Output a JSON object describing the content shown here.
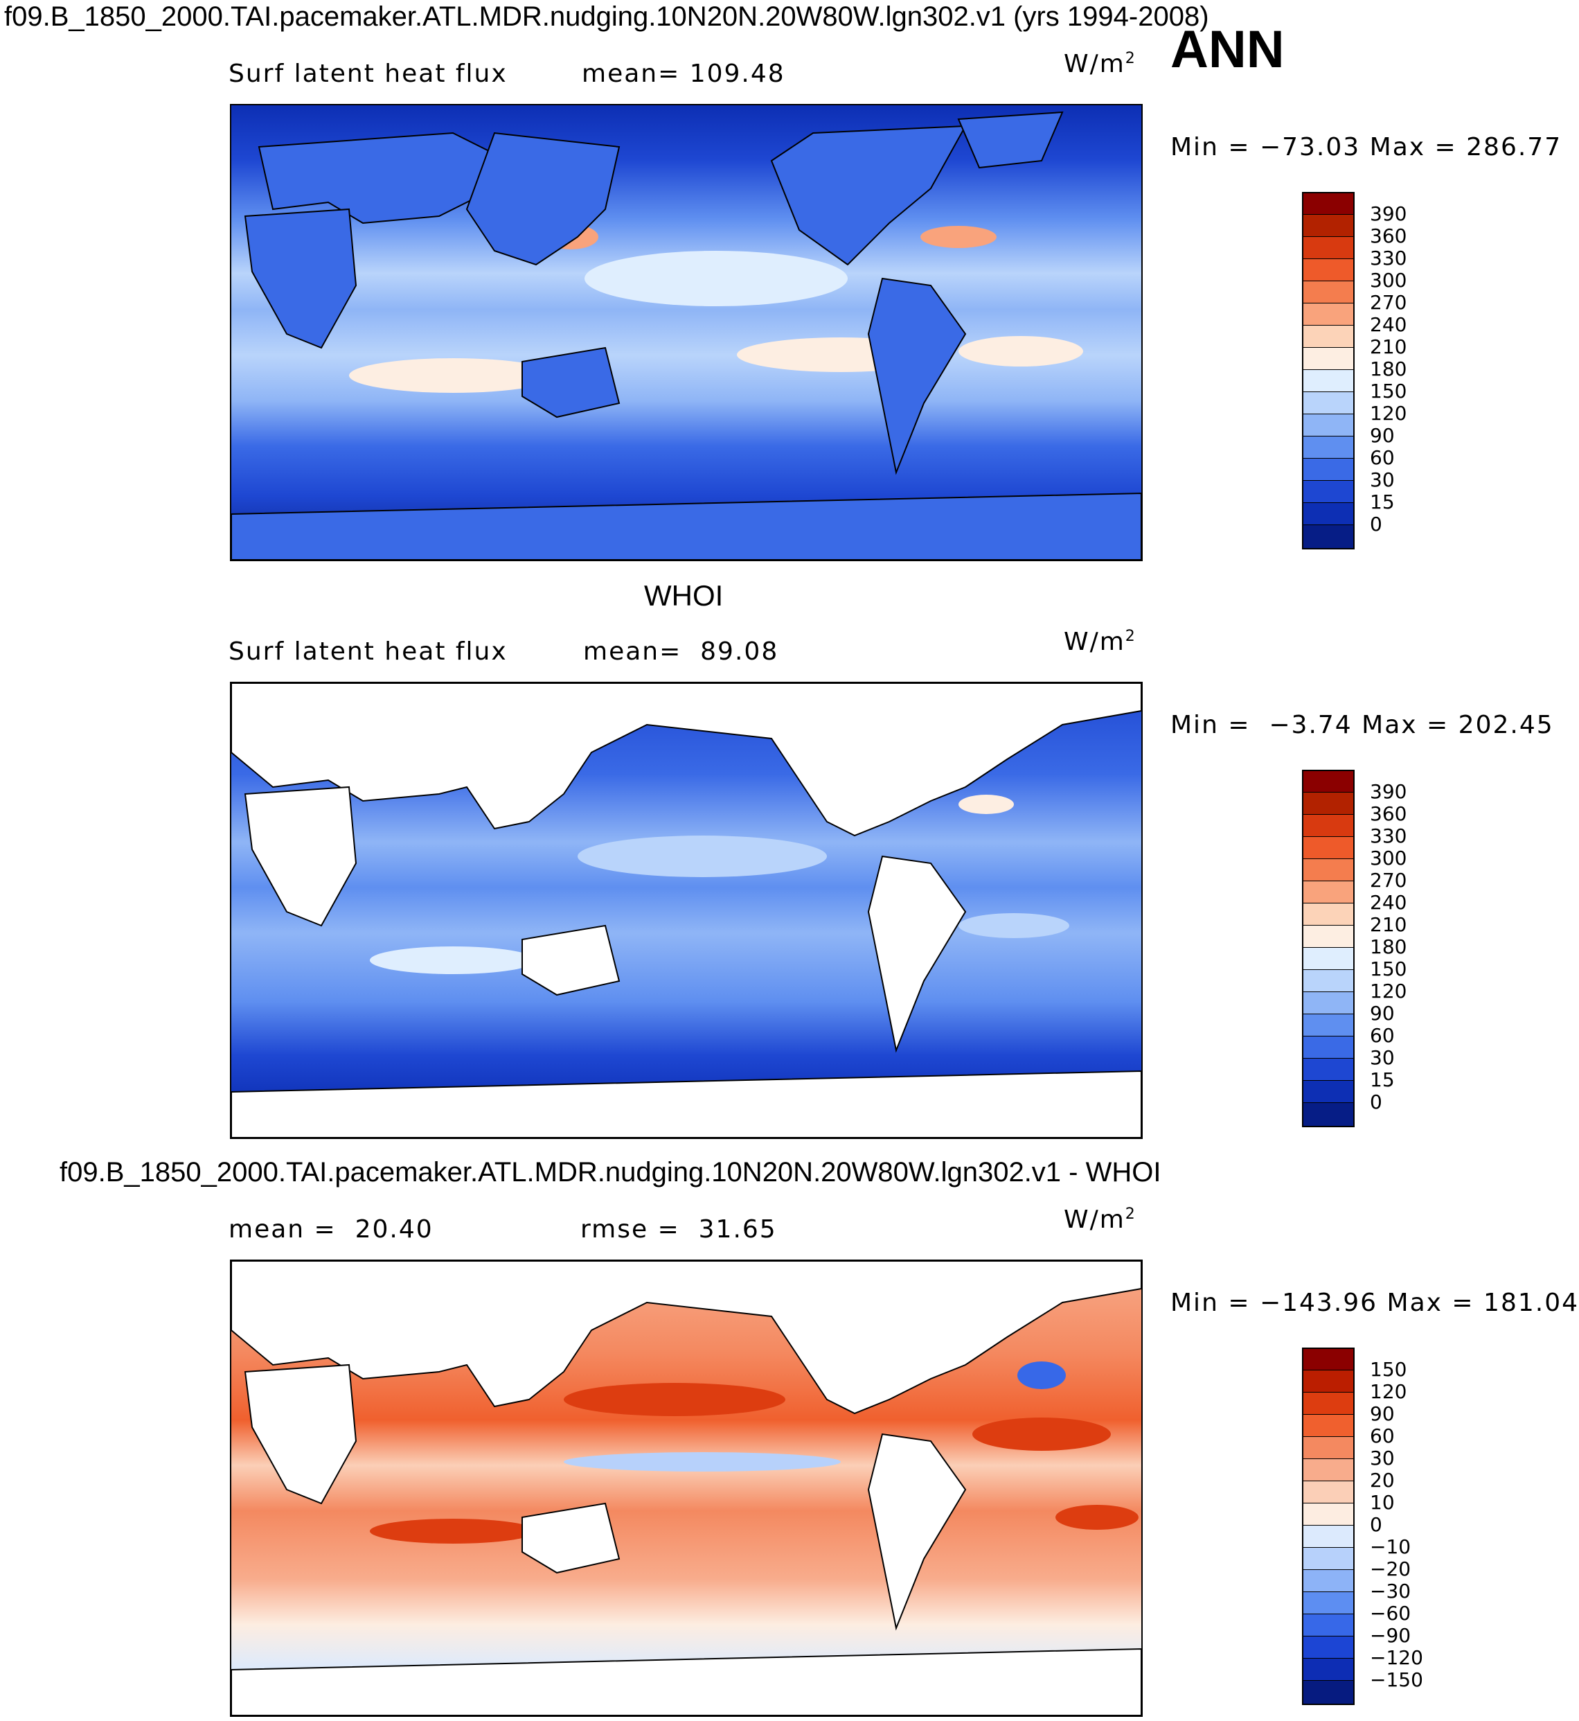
{
  "header": {
    "title": "f09.B_1850_2000.TAI.pacemaker.ATL.MDR.nudging.10N20N.20W80W.lgn302.v1 (yrs 1994-2008)",
    "season": "ANN"
  },
  "panels": [
    {
      "id": "model",
      "left_label": "Surf latent heat flux",
      "stat_label": "mean=",
      "stat_value": "109.48",
      "units": "W/m",
      "units_exp": "2",
      "min_label": "Min =",
      "min_value": "−73.03",
      "max_label": "Max =",
      "max_value": "286.77",
      "colorbar_ticks": [
        "390",
        "360",
        "330",
        "300",
        "270",
        "240",
        "210",
        "180",
        "150",
        "120",
        "90",
        "60",
        "30",
        "15",
        "0"
      ]
    },
    {
      "id": "obs",
      "title": "WHOI",
      "left_label": "Surf latent heat flux",
      "stat_label": "mean=",
      "stat_value": "89.08",
      "units": "W/m",
      "units_exp": "2",
      "min_label": "Min =",
      "min_value": "−3.74",
      "max_label": "Max =",
      "max_value": "202.45",
      "colorbar_ticks": [
        "390",
        "360",
        "330",
        "300",
        "270",
        "240",
        "210",
        "180",
        "150",
        "120",
        "90",
        "60",
        "30",
        "15",
        "0"
      ]
    },
    {
      "id": "diff",
      "title": "f09.B_1850_2000.TAI.pacemaker.ATL.MDR.nudging.10N20N.20W80W.lgn302.v1 - WHOI",
      "left_label": "mean =",
      "left_value": "20.40",
      "stat_label": "rmse =",
      "stat_value": "31.65",
      "units": "W/m",
      "units_exp": "2",
      "min_label": "Min =",
      "min_value": "−143.96",
      "max_label": "Max =",
      "max_value": "181.04",
      "colorbar_ticks": [
        "150",
        "120",
        "90",
        "60",
        "30",
        "20",
        "10",
        "0",
        "−10",
        "−20",
        "−30",
        "−60",
        "−90",
        "−120",
        "−150"
      ]
    }
  ],
  "colors": {
    "seq_scale": [
      "#8b0000",
      "#b22200",
      "#d83a10",
      "#ee5a2a",
      "#f47d4e",
      "#f9a37c",
      "#fcd3b8",
      "#fdeee2",
      "#dfeefe",
      "#b9d4fb",
      "#8fb5f6",
      "#5f8ff0",
      "#3a6ae6",
      "#1e47d2",
      "#0d2fb4",
      "#061d86"
    ],
    "div_scale": [
      "#8b0000",
      "#bb1e00",
      "#dd3d10",
      "#f0602e",
      "#f48960",
      "#f8ac8c",
      "#fbcfb7",
      "#fdede1",
      "#dceafd",
      "#b7d1fb",
      "#8db3f7",
      "#5d8ef2",
      "#3768e8",
      "#1c45d4",
      "#0d2db4",
      "#061b80"
    ],
    "land": "#ffffff",
    "coast": "#000000"
  }
}
